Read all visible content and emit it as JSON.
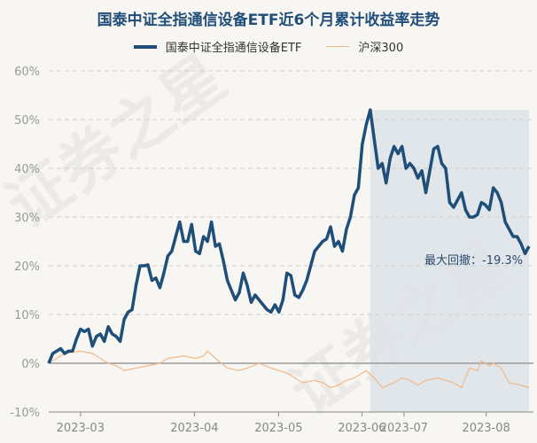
{
  "chart_data": {
    "type": "line",
    "title": "国泰中证全指通信设备ETF近6个月累计收益率走势",
    "ylim": [
      -10,
      60
    ],
    "y_ticks": [
      60,
      50,
      40,
      30,
      20,
      10,
      0,
      -10
    ],
    "y_tick_labels": [
      "60%",
      "50%",
      "40%",
      "30%",
      "20%",
      "10%",
      "0%",
      "-10%"
    ],
    "x_ticks": [
      {
        "index": 8,
        "label": "2023-03"
      },
      {
        "index": 36.7,
        "label": "2023-04"
      },
      {
        "index": 57.9,
        "label": "2023-05"
      },
      {
        "index": 78.9,
        "label": "2023-06"
      },
      {
        "index": 89.5,
        "label": "2023-07"
      },
      {
        "index": 110.2,
        "label": "2023-08"
      }
    ],
    "x_count": 122,
    "grid": true,
    "legend": "top-center",
    "series": [
      {
        "name": "国泰中证全指通信设备ETF",
        "color": "#1f4e79",
        "values": [
          0,
          2,
          2.5,
          3,
          2,
          2.5,
          2.5,
          5,
          7,
          6.5,
          7,
          3.5,
          5.5,
          6,
          4.5,
          7.5,
          6,
          5.5,
          4.5,
          9,
          10.5,
          11,
          16,
          20,
          20,
          20.2,
          17,
          17.5,
          15.5,
          18.5,
          22,
          23,
          26,
          29,
          25,
          25,
          28.5,
          23,
          22.5,
          26,
          25,
          29,
          24,
          24.5,
          21,
          17,
          15,
          13,
          14.5,
          18.5,
          16,
          12.5,
          14,
          13,
          12,
          11,
          10.5,
          12,
          10.5,
          13,
          18.5,
          18,
          14,
          13.5,
          15,
          17,
          20,
          23,
          24,
          25,
          25.5,
          28,
          24,
          25,
          23,
          27.5,
          30,
          34.5,
          36,
          45,
          49,
          52,
          46,
          40,
          41,
          37,
          42,
          44.5,
          43,
          44.5,
          40,
          41,
          40,
          38,
          39.5,
          35,
          39.5,
          44,
          44.5,
          41,
          40,
          33,
          32,
          33.5,
          35,
          31.5,
          30,
          30,
          30.5,
          33,
          32.5,
          31.5,
          36,
          35,
          33,
          29,
          27.5,
          26,
          26,
          24.5,
          22.5,
          24
        ]
      },
      {
        "name": "沪深300",
        "color": "#f0b98a",
        "points": [
          [
            0,
            0
          ],
          [
            4,
            2
          ],
          [
            8,
            2.5
          ],
          [
            11,
            2
          ],
          [
            13,
            1
          ],
          [
            15,
            0
          ],
          [
            17,
            -0.5
          ],
          [
            19,
            -1.5
          ],
          [
            22,
            -1
          ],
          [
            25,
            -0.5
          ],
          [
            28,
            0
          ],
          [
            30,
            1
          ],
          [
            34,
            1.5
          ],
          [
            37,
            1
          ],
          [
            39,
            1.5
          ],
          [
            40,
            2.5
          ],
          [
            42,
            1
          ],
          [
            45,
            -1
          ],
          [
            48,
            -1.5
          ],
          [
            50,
            -1
          ],
          [
            53,
            0
          ],
          [
            56,
            -1
          ],
          [
            60,
            -2
          ],
          [
            62,
            -3
          ],
          [
            64,
            -4
          ],
          [
            67,
            -3.5
          ],
          [
            69,
            -4
          ],
          [
            71,
            -5
          ],
          [
            73,
            -4.5
          ],
          [
            75,
            -3.5
          ],
          [
            77,
            -3
          ],
          [
            80,
            -1.5
          ],
          [
            82,
            -3
          ],
          [
            84,
            -5
          ],
          [
            87,
            -4
          ],
          [
            89,
            -3
          ],
          [
            91,
            -3.5
          ],
          [
            93,
            -4.5
          ],
          [
            95,
            -3.5
          ],
          [
            98,
            -3
          ],
          [
            100,
            -3.5
          ],
          [
            102,
            -4
          ],
          [
            104,
            -5
          ],
          [
            106,
            -1
          ],
          [
            108,
            -1.5
          ],
          [
            109,
            0.5
          ],
          [
            111,
            -0.5
          ],
          [
            112,
            0
          ],
          [
            114,
            -1
          ],
          [
            116,
            -4
          ],
          [
            119,
            -4.5
          ],
          [
            121,
            -5
          ]
        ]
      }
    ],
    "drawdown": {
      "label": "最大回撤：-19.3%",
      "start_index": 81,
      "end_index": 121,
      "color": "#dde3e9"
    }
  }
}
